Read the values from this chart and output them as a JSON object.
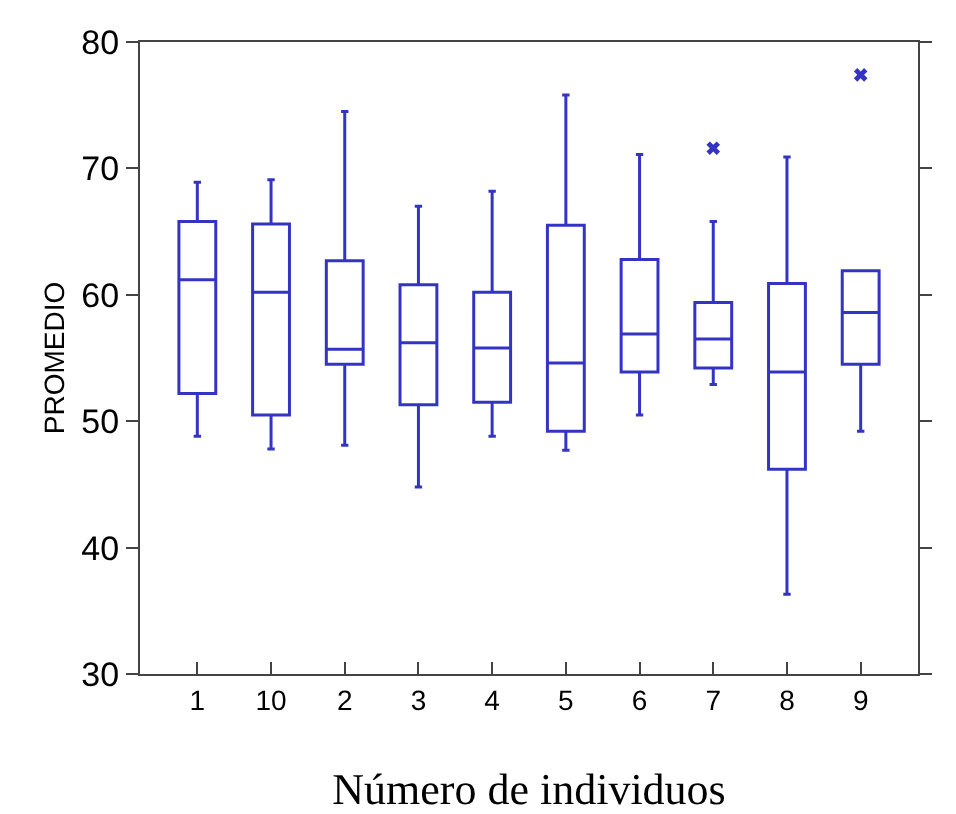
{
  "chart_data": {
    "type": "box",
    "xlabel": "Número de individuos",
    "ylabel": "PROMEDIO",
    "categories": [
      "1",
      "10",
      "2",
      "3",
      "4",
      "5",
      "6",
      "7",
      "8",
      "9"
    ],
    "ylim": [
      30,
      80
    ],
    "yticks": [
      30,
      40,
      50,
      60,
      70,
      80
    ],
    "grid": false,
    "series": [
      {
        "color": "#3434c4",
        "boxes": [
          {
            "low": 48.8,
            "q1": 52.2,
            "median": 61.2,
            "q3": 65.8,
            "high": 68.9
          },
          {
            "low": 47.8,
            "q1": 50.5,
            "median": 60.2,
            "q3": 65.6,
            "high": 69.1
          },
          {
            "low": 48.1,
            "q1": 54.5,
            "median": 55.7,
            "q3": 62.7,
            "high": 74.5
          },
          {
            "low": 44.8,
            "q1": 51.3,
            "median": 56.2,
            "q3": 60.8,
            "high": 67.0
          },
          {
            "low": 48.8,
            "q1": 51.5,
            "median": 55.8,
            "q3": 60.2,
            "high": 68.2
          },
          {
            "low": 47.7,
            "q1": 49.2,
            "median": 54.6,
            "q3": 65.5,
            "high": 75.8
          },
          {
            "low": 50.5,
            "q1": 53.9,
            "median": 56.9,
            "q3": 62.8,
            "high": 71.1
          },
          {
            "low": 52.9,
            "q1": 54.2,
            "median": 56.5,
            "q3": 59.4,
            "high": 65.8
          },
          {
            "low": 36.3,
            "q1": 46.2,
            "median": 53.9,
            "q3": 60.9,
            "high": 70.9
          },
          {
            "low": 49.2,
            "q1": 54.5,
            "median": 58.6,
            "q3": 61.9,
            "high": 61.9
          }
        ]
      },
      {
        "type": "scatter",
        "color": "#3434c4",
        "marker": "cross",
        "x": [
          "7",
          "9"
        ],
        "values": [
          71.6,
          77.4
        ]
      }
    ]
  }
}
